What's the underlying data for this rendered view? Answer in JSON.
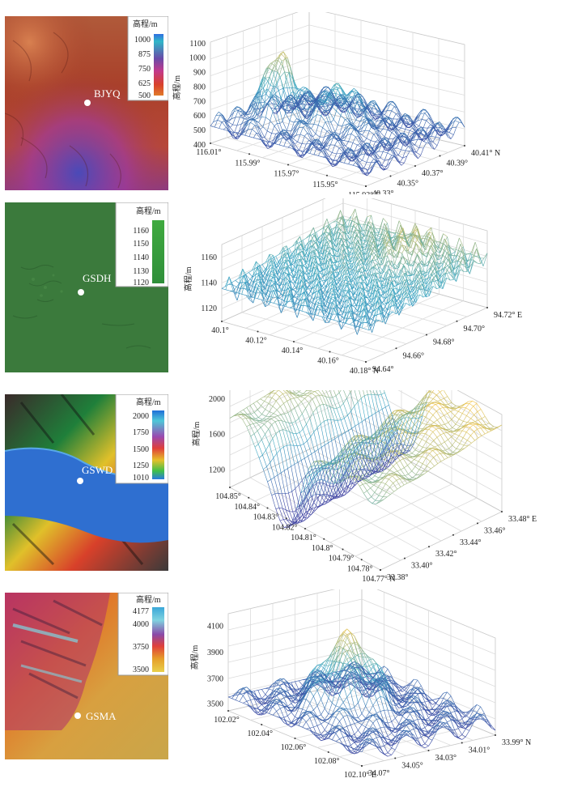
{
  "colors": {
    "bjyq_map": "#a04028",
    "gsdh_map": "#3b7a3c",
    "gswd_valley": "#2f6fd0",
    "gsma_map": "#c9a64a",
    "surface_low": "#3b3fa0",
    "surface_mid": "#3aa7c4",
    "surface_high": "#f2c44a"
  },
  "panels": [
    {
      "station": "BJYQ",
      "legend_title": "高程/m",
      "legend_ticks": [
        "1000",
        "875",
        "750",
        "625",
        "500"
      ],
      "legend_colors": [
        "#2f6fe0",
        "#30b7c8",
        "#6a4aa8",
        "#c23a8c",
        "#d8412c",
        "#e07a2a"
      ]
    },
    {
      "station": "GSDH",
      "legend_title": "高程/m",
      "legend_ticks": [
        "1160",
        "1150",
        "1140",
        "1130",
        "1120"
      ],
      "legend_colors": [
        "#3faa3f",
        "#2f8f3a"
      ]
    },
    {
      "station": "GSWD",
      "legend_title": "高程/m",
      "legend_ticks": [
        "2000",
        "1750",
        "1500",
        "1250",
        "1010"
      ],
      "legend_colors": [
        "#1f6fd8",
        "#4fc7d8",
        "#9a4ab0",
        "#e0403a",
        "#e6c02a",
        "#3fbf4a",
        "#2a7ae0"
      ]
    },
    {
      "station": "GSMA",
      "legend_title": "高程/m",
      "legend_ticks": [
        "4177",
        "4000",
        "3750",
        "3500"
      ],
      "legend_colors": [
        "#3aa7d8",
        "#7fd3e0",
        "#8a4aa8",
        "#e0403a",
        "#e6a02a",
        "#e8d04a"
      ]
    }
  ],
  "chart_data": [
    {
      "type": "surface",
      "station": "BJYQ",
      "zlabel": "高程/m",
      "z_ticks": [
        "1100",
        "1000",
        "900",
        "800",
        "700",
        "600",
        "500",
        "400"
      ],
      "x_ticks": [
        "116.01°",
        "115.99°",
        "115.97°",
        "115.95°",
        "115.93° E"
      ],
      "y_ticks": [
        "40.33°",
        "40.35°",
        "40.37°",
        "40.39°",
        "40.41° N"
      ],
      "zlim": [
        400,
        1100
      ]
    },
    {
      "type": "surface",
      "station": "GSDH",
      "zlabel": "高程/m",
      "z_ticks": [
        "1160",
        "1140",
        "1120"
      ],
      "x_ticks": [
        "40.1°",
        "40.12°",
        "40.14°",
        "40.16°",
        "40.18° N"
      ],
      "y_ticks": [
        "94.64°",
        "94.66°",
        "94.68°",
        "94.70°",
        "94.72° E"
      ],
      "zlim": [
        1110,
        1170
      ]
    },
    {
      "type": "surface",
      "station": "GSWD",
      "zlabel": "高程/m",
      "z_ticks": [
        "2000",
        "1600",
        "1200"
      ],
      "x_ticks": [
        "104.85°",
        "104.84°",
        "104.83°",
        "104.82°",
        "104.81°",
        "104.8°",
        "104.79°",
        "104.78°",
        "104.77° N"
      ],
      "y_ticks": [
        "33.38°",
        "33.40°",
        "33.42°",
        "33.44°",
        "33.46°",
        "33.48° E"
      ],
      "zlim": [
        1000,
        2100
      ]
    },
    {
      "type": "surface",
      "station": "GSMA",
      "zlabel": "高程/m",
      "z_ticks": [
        "4100",
        "3900",
        "3700",
        "3500"
      ],
      "x_ticks": [
        "102.02°",
        "102.04°",
        "102.06°",
        "102.08°",
        "102.10° E"
      ],
      "y_ticks": [
        "34.07°",
        "34.05°",
        "34.03°",
        "34.01°",
        "33.99° N"
      ],
      "zlim": [
        3450,
        4200
      ]
    }
  ]
}
